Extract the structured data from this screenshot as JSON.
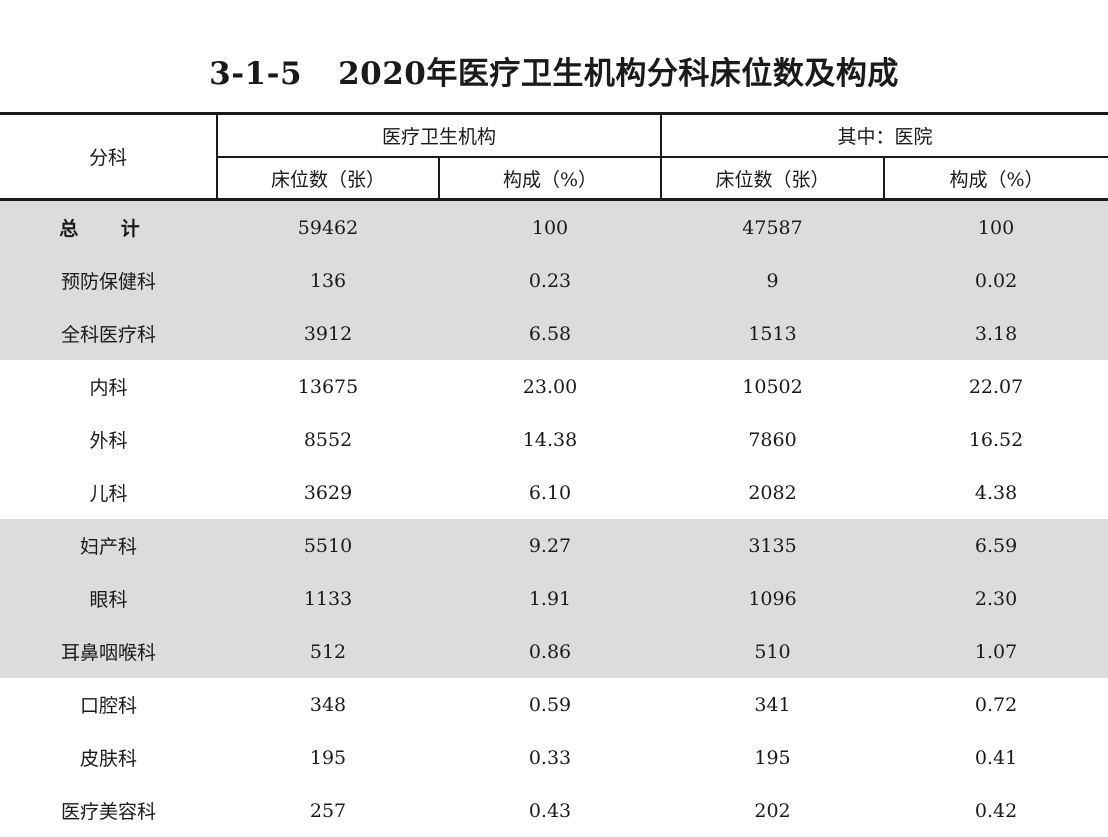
{
  "title": {
    "code": "3-1-5",
    "text": "2020年医疗卫生机构分科床位数及构成"
  },
  "header": {
    "row_label": "分科",
    "group1": "医疗卫生机构",
    "group2": "其中：医院",
    "sub_beds": "床位数（张）",
    "sub_pct": "构成（%）"
  },
  "rows": [
    {
      "name": "总 计",
      "beds": "59462",
      "pct": "100",
      "h_beds": "47587",
      "h_pct": "100"
    },
    {
      "name": "预防保健科",
      "beds": "136",
      "pct": "0.23",
      "h_beds": "9",
      "h_pct": "0.02"
    },
    {
      "name": "全科医疗科",
      "beds": "3912",
      "pct": "6.58",
      "h_beds": "1513",
      "h_pct": "3.18"
    },
    {
      "name": "内科",
      "beds": "13675",
      "pct": "23.00",
      "h_beds": "10502",
      "h_pct": "22.07"
    },
    {
      "name": "外科",
      "beds": "8552",
      "pct": "14.38",
      "h_beds": "7860",
      "h_pct": "16.52"
    },
    {
      "name": "儿科",
      "beds": "3629",
      "pct": "6.10",
      "h_beds": "2082",
      "h_pct": "4.38"
    },
    {
      "name": "妇产科",
      "beds": "5510",
      "pct": "9.27",
      "h_beds": "3135",
      "h_pct": "6.59"
    },
    {
      "name": "眼科",
      "beds": "1133",
      "pct": "1.91",
      "h_beds": "1096",
      "h_pct": "2.30"
    },
    {
      "name": "耳鼻咽喉科",
      "beds": "512",
      "pct": "0.86",
      "h_beds": "510",
      "h_pct": "1.07"
    },
    {
      "name": "口腔科",
      "beds": "348",
      "pct": "0.59",
      "h_beds": "341",
      "h_pct": "0.72"
    },
    {
      "name": "皮肤科",
      "beds": "195",
      "pct": "0.33",
      "h_beds": "195",
      "h_pct": "0.41"
    },
    {
      "name": "医疗美容科",
      "beds": "257",
      "pct": "0.43",
      "h_beds": "202",
      "h_pct": "0.42"
    }
  ]
}
